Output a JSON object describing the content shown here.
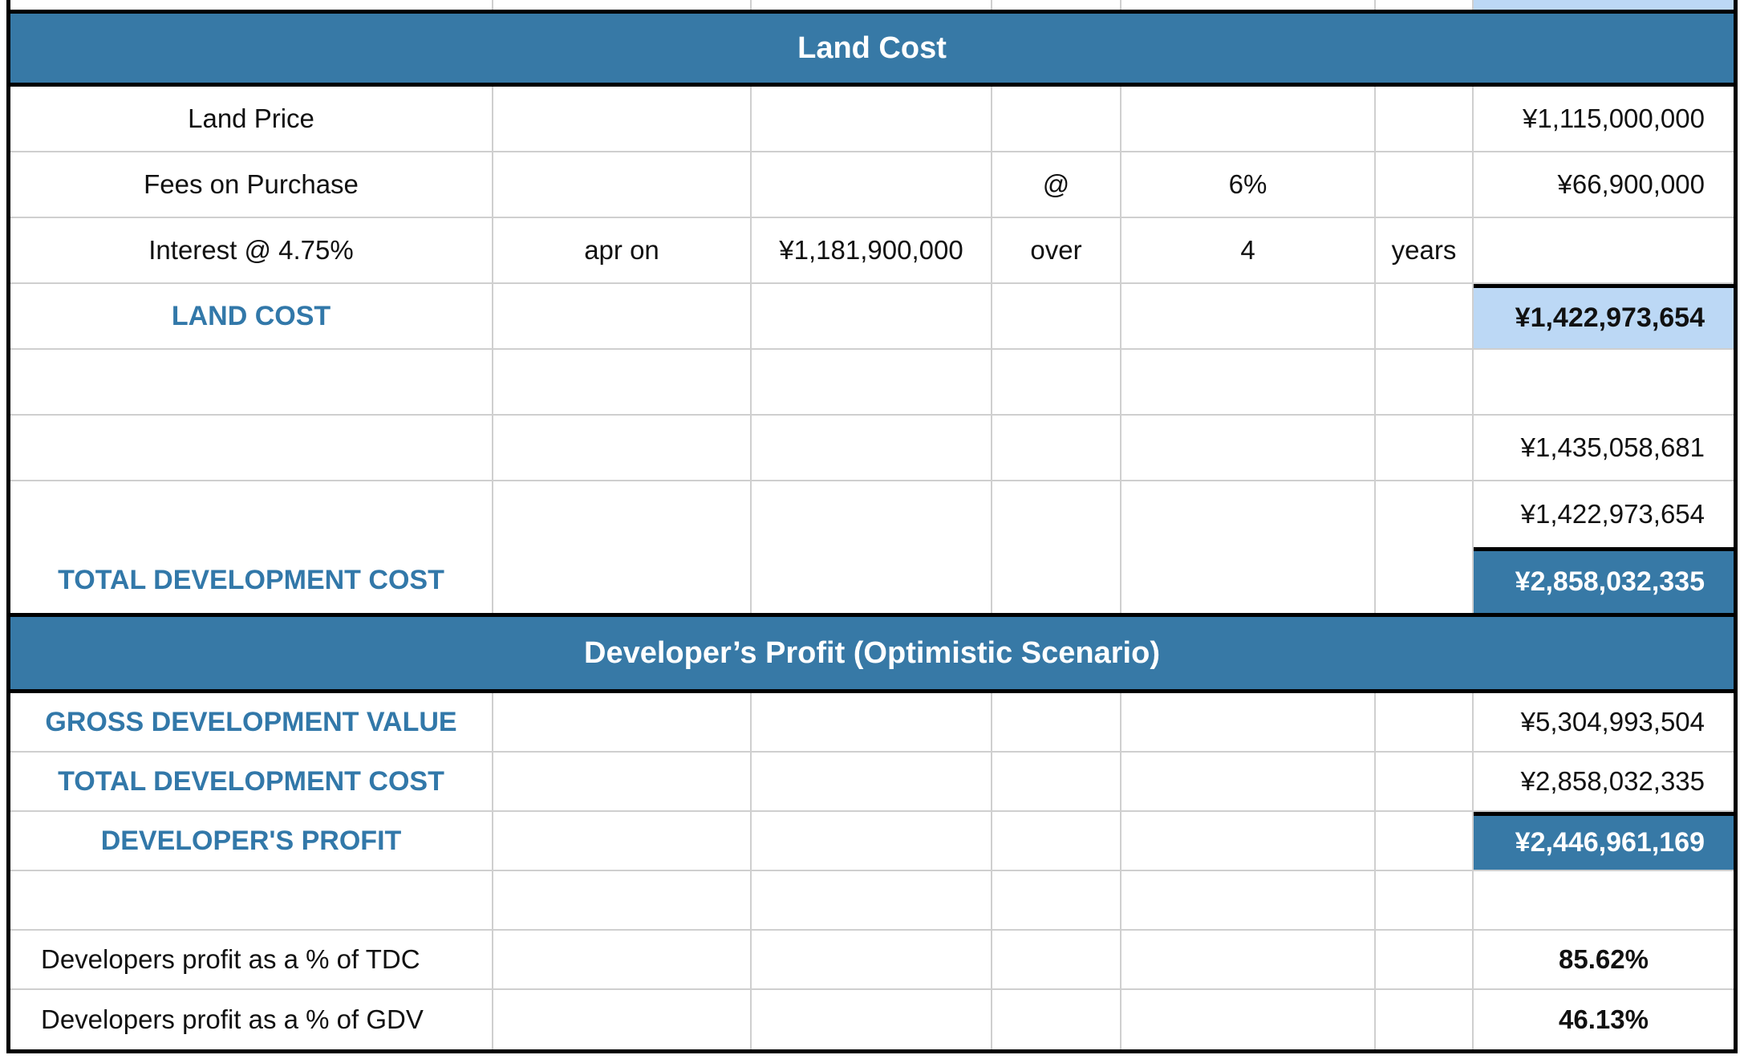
{
  "colors": {
    "section_header_bg": "#3779A6",
    "section_header_text": "#FFFFFF",
    "accent_label_blue": "#3278A9",
    "highlight_light_blue": "#BCD8F5",
    "highlight_dark_blue": "#3779A6",
    "gridline_gray": "#CFCFCF",
    "border_black": "#000000"
  },
  "land_cost": {
    "title": "Land Cost",
    "land_price": {
      "label": "Land Price",
      "value": "¥1,115,000,000"
    },
    "fees": {
      "label": "Fees on Purchase",
      "at": "@",
      "rate": "6%",
      "value": "¥66,900,000"
    },
    "interest": {
      "label": "Interest @ 4.75%",
      "apr_on": "apr on",
      "principal": "¥1,181,900,000",
      "over": "over",
      "term": "4",
      "term_unit": "years"
    },
    "land_cost_total": {
      "label": "LAND COST",
      "value": "¥1,422,973,654"
    },
    "subtotal_a": {
      "value": "¥1,435,058,681"
    },
    "subtotal_b": {
      "value": "¥1,422,973,654"
    },
    "total_development_cost": {
      "label": "TOTAL DEVELOPMENT COST",
      "value": "¥2,858,032,335"
    }
  },
  "developers_profit": {
    "title": "Developer’s Profit (Optimistic Scenario)",
    "gross_development_value": {
      "label": "GROSS DEVELOPMENT VALUE",
      "value": "¥5,304,993,504"
    },
    "total_development_cost": {
      "label": "TOTAL DEVELOPMENT COST",
      "value": "¥2,858,032,335"
    },
    "developers_profit_total": {
      "label": "DEVELOPER'S PROFIT",
      "value": "¥2,446,961,169"
    },
    "profit_pct_of_tdc": {
      "label": "Developers profit as a % of TDC",
      "value": "85.62%"
    },
    "profit_pct_of_gdv": {
      "label": "Developers profit as a % of GDV",
      "value": "46.13%"
    }
  }
}
